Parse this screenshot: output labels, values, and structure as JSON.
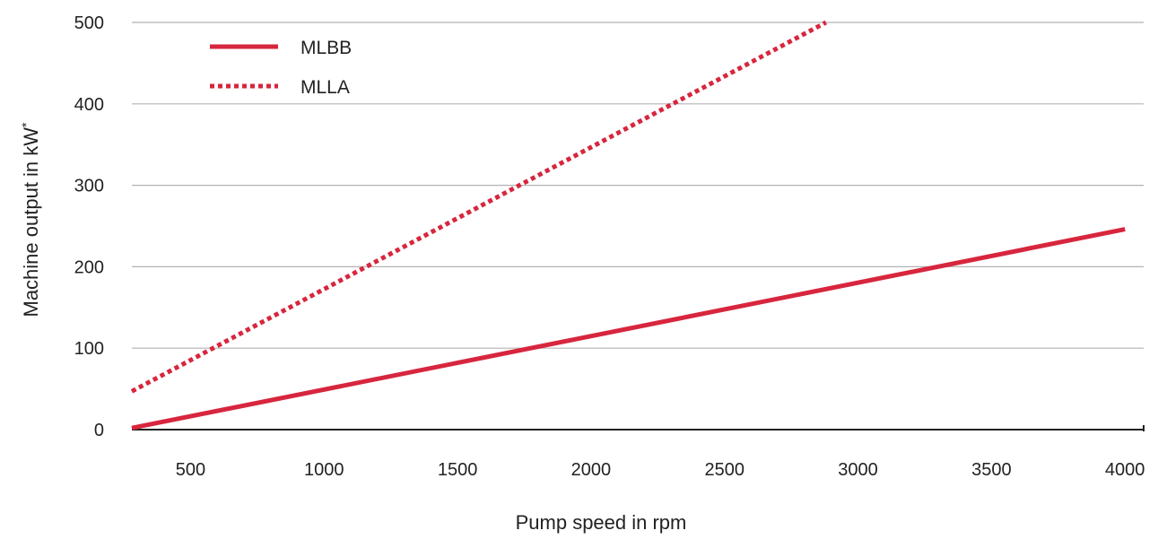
{
  "chart_data": {
    "type": "line",
    "title": "",
    "xlabel": "Pump speed in rpm",
    "ylabel": "Machine output in kW",
    "ylabel_marker": "*",
    "xlim": [
      280,
      4070
    ],
    "ylim": [
      0,
      500
    ],
    "x_ticks": [
      500,
      1000,
      1500,
      2000,
      2500,
      3000,
      3500,
      4000
    ],
    "y_ticks": [
      0,
      100,
      200,
      300,
      400,
      500
    ],
    "grid": "horizontal",
    "legend_position": "top-left",
    "series_color": "#d7263d",
    "series": [
      {
        "name": "MLBB",
        "style": "solid",
        "x": [
          280,
          4000
        ],
        "y": [
          2,
          246
        ]
      },
      {
        "name": "MLLA",
        "style": "dotted",
        "x": [
          280,
          2880
        ],
        "y": [
          47,
          500
        ]
      }
    ]
  }
}
